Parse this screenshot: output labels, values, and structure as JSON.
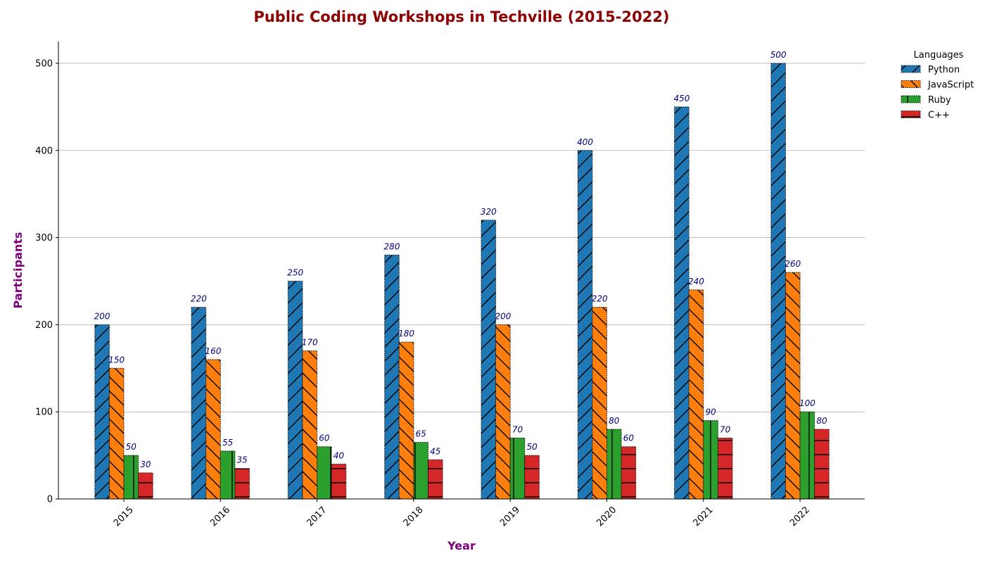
{
  "chart_data": {
    "type": "bar",
    "title": "Public Coding Workshops in Techville (2015-2022)",
    "xlabel": "Year",
    "ylabel": "Participants",
    "categories": [
      "2015",
      "2016",
      "2017",
      "2018",
      "2019",
      "2020",
      "2021",
      "2022"
    ],
    "ylim": [
      0,
      525
    ],
    "yticks": [
      0,
      100,
      200,
      300,
      400,
      500
    ],
    "grid": "horizontal",
    "legend": {
      "title": "Languages",
      "placement": "outside-top-right"
    },
    "series": [
      {
        "name": "Python",
        "color": "#1f77b4",
        "hatch": "diagonal-forward",
        "values": [
          200,
          220,
          250,
          280,
          320,
          400,
          450,
          500
        ]
      },
      {
        "name": "JavaScript",
        "color": "#ff7f0e",
        "hatch": "diagonal-back",
        "values": [
          150,
          160,
          170,
          180,
          200,
          220,
          240,
          260
        ]
      },
      {
        "name": "Ruby",
        "color": "#2ca02c",
        "hatch": "vertical",
        "values": [
          50,
          55,
          60,
          65,
          70,
          80,
          90,
          100
        ]
      },
      {
        "name": "C++",
        "color": "#d62728",
        "hatch": "horizontal",
        "values": [
          30,
          35,
          40,
          45,
          50,
          60,
          70,
          80
        ]
      }
    ]
  }
}
